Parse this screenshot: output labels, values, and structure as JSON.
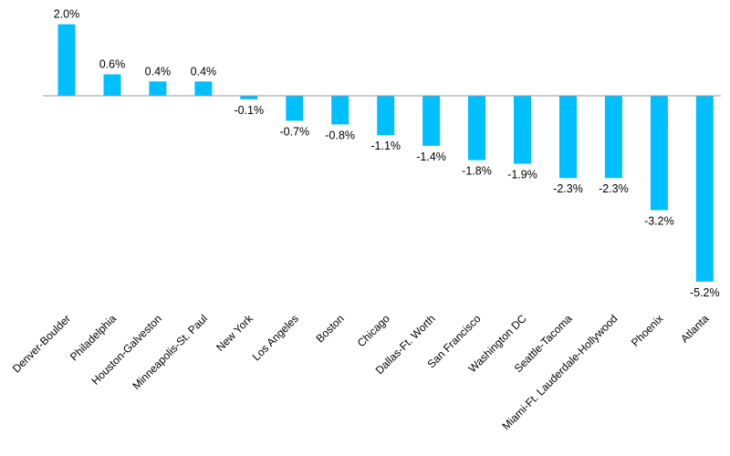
{
  "chart_data": {
    "type": "bar",
    "title": "",
    "xlabel": "",
    "ylabel": "",
    "ylim": [
      -5.2,
      2.0
    ],
    "grid": false,
    "legend": "none",
    "bar_color": "#00bfff",
    "axis_color": "#9a9a9a",
    "value_suffix": "%",
    "categories": [
      "Denver-Boulder",
      "Philadelphia",
      "Houston-Galveston",
      "Minneapolis-St. Paul",
      "New York",
      "Los Angeles",
      "Boston",
      "Chicago",
      "Dallas-Ft. Worth",
      "San Francisco",
      "Washington DC",
      "Seattle-Tacoma",
      "Miami-Ft. Lauderdale-Hollywood",
      "Phoenix",
      "Atlanta"
    ],
    "values": [
      2.0,
      0.6,
      0.4,
      0.4,
      -0.1,
      -0.7,
      -0.8,
      -1.1,
      -1.4,
      -1.8,
      -1.9,
      -2.3,
      -2.3,
      -3.2,
      -5.2
    ],
    "value_labels": [
      "2.0%",
      "0.6%",
      "0.4%",
      "0.4%",
      "-0.1%",
      "-0.7%",
      "-0.8%",
      "-1.1%",
      "-1.4%",
      "-1.8%",
      "-1.9%",
      "-2.3%",
      "-2.3%",
      "-3.2%",
      "-5.2%"
    ]
  }
}
